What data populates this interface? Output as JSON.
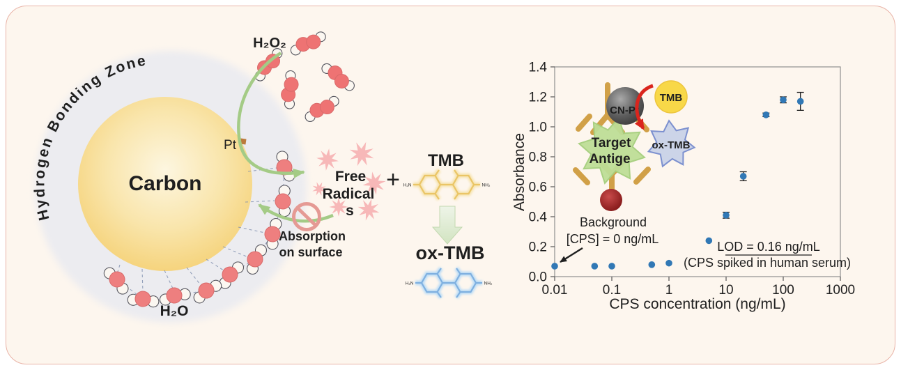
{
  "left_diagram": {
    "zone_label": "Hydrogen Bonding Zone",
    "sphere_label": "Carbon",
    "pt_label": "Pt",
    "h2o2_label": "H₂O₂",
    "h2o_label": "H₂O",
    "absorption_line1": "Absorption",
    "absorption_line2": "on surface",
    "free_radicals_line1": "Free",
    "free_radicals_line2": "Radical",
    "free_radicals_line3": "s",
    "plus_sign": "+",
    "tmb_label": "TMB",
    "oxtmb_label": "ox-TMB",
    "molecules": {
      "amine_left": "H₂N",
      "amine_right": "NH₂"
    },
    "colors": {
      "zone_text": "#7289c4",
      "carbon_text": "#c9992f",
      "red_text": "#c2272f",
      "free_radical_text": "#d22f2f",
      "tmb_text": "#edc14b",
      "oxtmb_text": "#2e73b4",
      "arrow_green": "#a4cb86",
      "water_red": "#ee7f7f",
      "starburst": "#f7b8b8"
    }
  },
  "inset": {
    "tmb_label": "TMB",
    "catalyst_label": "CN-Pt",
    "antigen_line1": "Target",
    "antigen_line2": "Antige",
    "oxtmb_label": "ox-TMB"
  },
  "chart_data": {
    "type": "scatter",
    "x": [
      0.01,
      0.05,
      0.1,
      0.5,
      1,
      5,
      10,
      20,
      50,
      100,
      200
    ],
    "y": [
      0.07,
      0.07,
      0.07,
      0.08,
      0.09,
      0.24,
      0.41,
      0.67,
      1.08,
      1.18,
      1.17
    ],
    "y_err": [
      0,
      0,
      0,
      0,
      0,
      0,
      0.02,
      0.03,
      0.012,
      0.02,
      0.06
    ],
    "x_scale": "log",
    "xlim": [
      0.01,
      1000
    ],
    "ylim": [
      0,
      1.4
    ],
    "x_ticks": [
      "0.01",
      "0.1",
      "1",
      "10",
      "100",
      "1000"
    ],
    "y_ticks": [
      "0.0",
      "0.2",
      "0.4",
      "0.6",
      "0.8",
      "1.0",
      "1.2",
      "1.4"
    ],
    "xlabel": "CPS concentration (ng/mL)",
    "ylabel": "Absorbance",
    "grid": false,
    "legend": "none",
    "point_color": "#3178b5",
    "annotations": {
      "background_line1": "Background",
      "background_line2": "[CPS] = 0 ng/mL",
      "lod": "LOD = 0.16 ng/mL",
      "serum": "(CPS spiked in human serum)"
    }
  }
}
